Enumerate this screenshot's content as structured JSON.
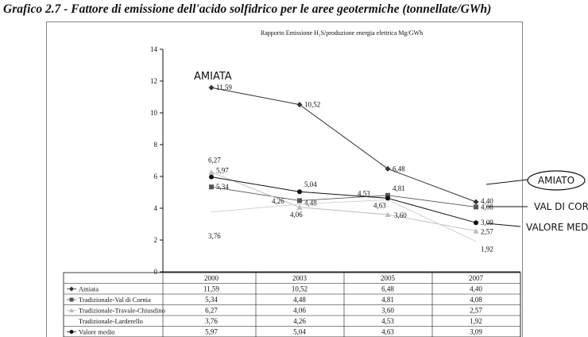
{
  "heading": "Grafico 2.7 - Fattore di emissione dell'acido solfidrico per le aree geotermiche (tonnellate/GWh)",
  "chart_data": {
    "type": "line",
    "title": "Rapporto Emissione H₂S/produzione energia elettrica   Mg/GWh",
    "categories": [
      "2000",
      "2003",
      "2005",
      "2007"
    ],
    "ylim": [
      0,
      14
    ],
    "yticks": [
      "0",
      "2",
      "4",
      "6",
      "8",
      "10",
      "12",
      "14"
    ],
    "grid": false,
    "legend": "table-below",
    "series": [
      {
        "name": "Amiata",
        "marker": "diamond",
        "color": "#333333",
        "values": [
          11.59,
          10.52,
          6.48,
          4.4
        ],
        "labels": [
          "11,59",
          "10,52",
          "6,48",
          "4,40"
        ]
      },
      {
        "name": "Tradizionale-Val di Cornia",
        "marker": "square",
        "color": "#555555",
        "values": [
          5.34,
          4.48,
          4.81,
          4.08
        ],
        "labels": [
          "5,34",
          "4,48",
          "4,81",
          "4,08"
        ]
      },
      {
        "name": "Tradizionale-Travale-Chiusdino",
        "marker": "triangle",
        "color": "#bbbbbb",
        "values": [
          6.27,
          4.06,
          3.6,
          2.57
        ],
        "labels": [
          "6,27",
          "4,06",
          "3,60",
          "2,57"
        ]
      },
      {
        "name": "Tradizionale-Larderello",
        "marker": "none",
        "color": "#cccccc",
        "values": [
          3.76,
          4.26,
          4.53,
          1.92
        ],
        "labels": [
          "3,76",
          "4,26",
          "4,53",
          "1,92"
        ]
      },
      {
        "name": "Valore medio",
        "marker": "circle",
        "color": "#111111",
        "values": [
          5.97,
          5.04,
          4.63,
          3.09
        ],
        "labels": [
          "5,97",
          "5,04",
          "4,63",
          "3,09"
        ]
      }
    ],
    "annotations": {
      "amiata_handwritten": "AMIATA",
      "right_notes": [
        "AMIATO",
        "VAL DI CORNIA",
        "VALORE MEDI"
      ]
    }
  }
}
